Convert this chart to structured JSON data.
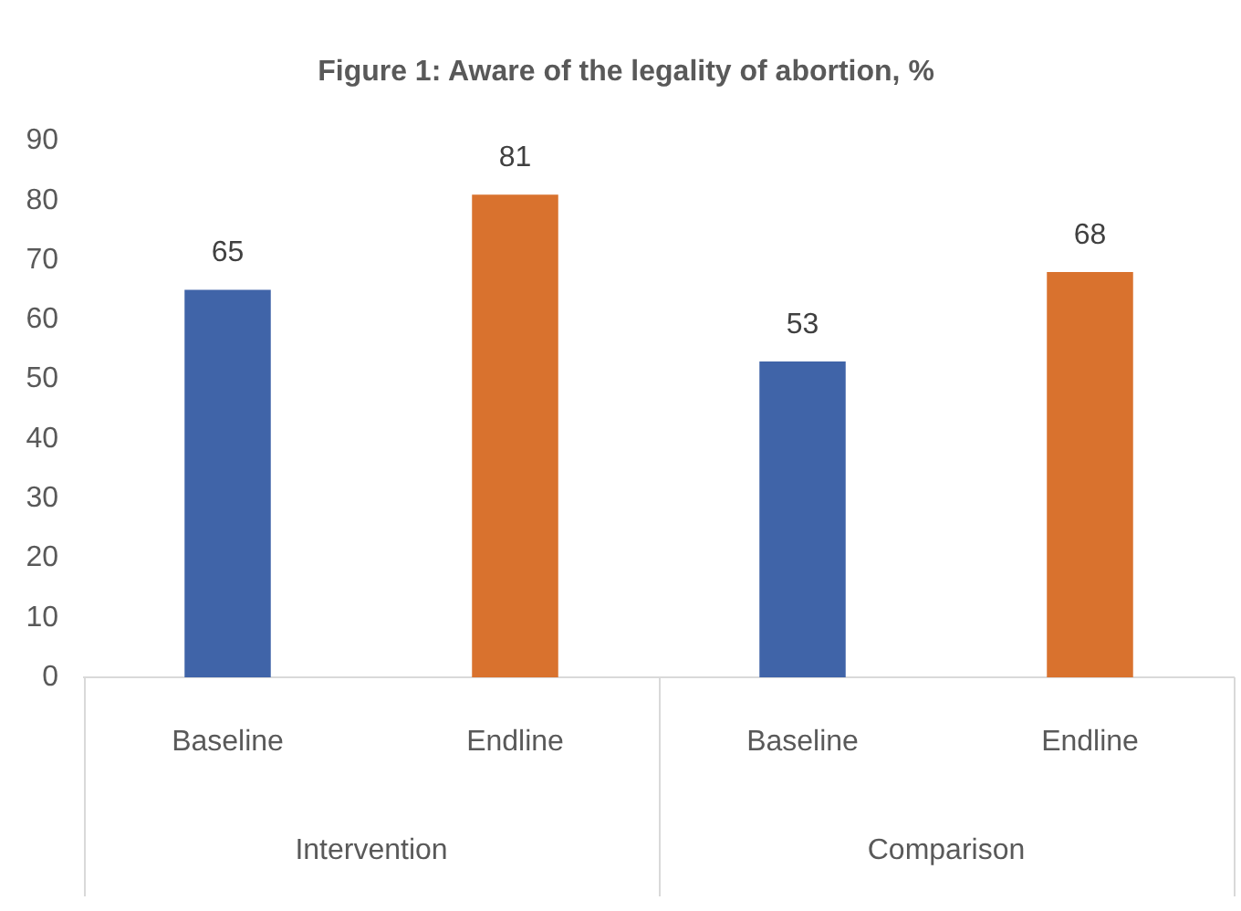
{
  "chart_data": {
    "type": "bar",
    "title": "Figure 1: Aware of the legality of abortion, %",
    "categories": [
      "Baseline",
      "Endline",
      "Baseline",
      "Endline"
    ],
    "values": [
      65,
      81,
      53,
      68
    ],
    "colors": [
      "#4064a8",
      "#d9722e",
      "#4064a8",
      "#d9722e"
    ],
    "ylim": [
      0,
      90
    ],
    "yticks": [
      0,
      10,
      20,
      30,
      40,
      50,
      60,
      70,
      80,
      90
    ],
    "grid": false,
    "legend": false,
    "data_labels": true,
    "annotations": [
      "Intervention",
      "Comparison"
    ]
  }
}
